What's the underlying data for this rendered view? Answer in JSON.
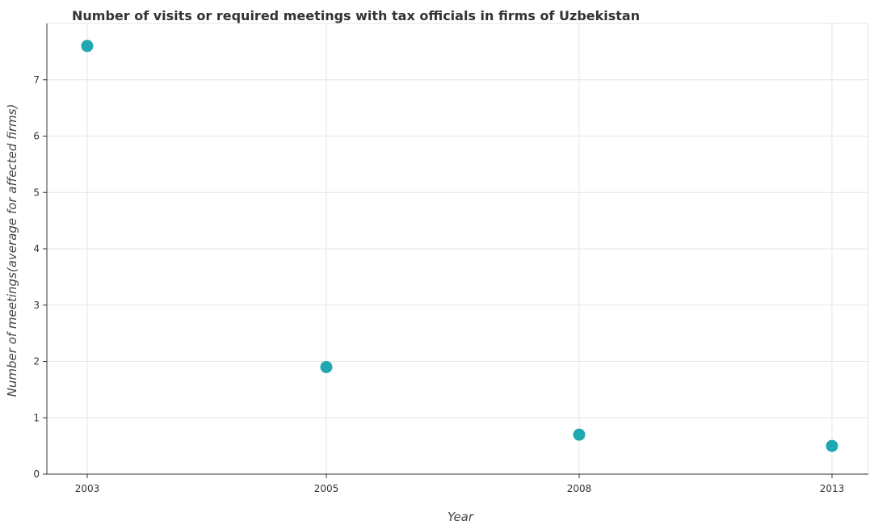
{
  "chart_data": {
    "type": "scatter",
    "title": "Number of visits or required meetings with tax officials in firms of Uzbekistan",
    "xlabel": "Year",
    "ylabel": "Number of meetings(average for affected firms)",
    "categories": [
      "2003",
      "2005",
      "2008",
      "2013"
    ],
    "values": [
      7.6,
      1.9,
      0.7,
      0.5
    ],
    "ylim": [
      0,
      8
    ],
    "yticks": [
      0,
      1,
      2,
      3,
      4,
      5,
      6,
      7
    ],
    "grid": true,
    "marker_color": "#1fa8b0"
  }
}
